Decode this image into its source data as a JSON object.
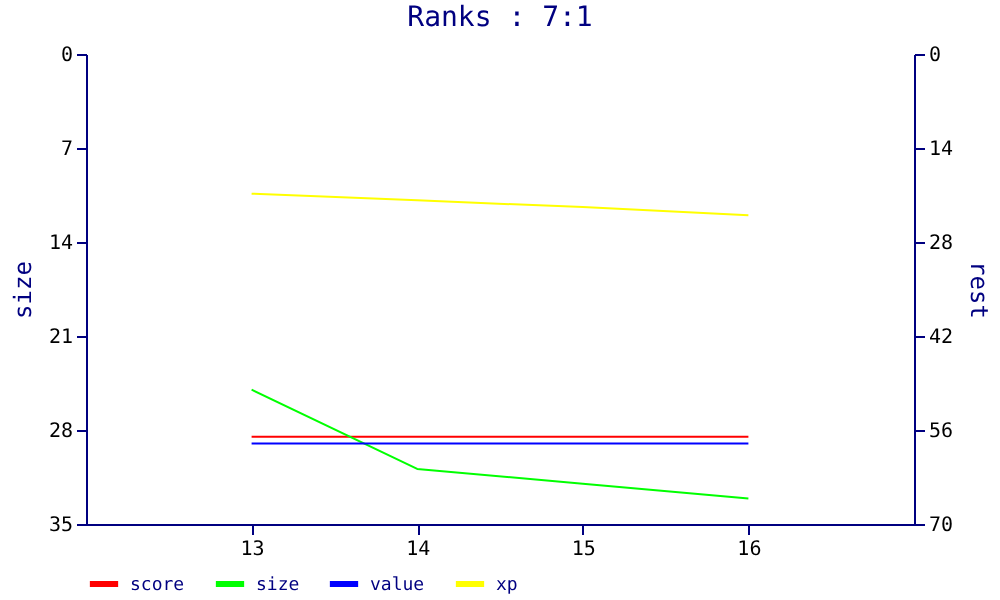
{
  "chart_data": {
    "type": "line",
    "title": "Ranks : 7:1",
    "ylabel": "size",
    "y2label": "rest",
    "x": [
      13,
      14,
      15,
      16
    ],
    "series": [
      {
        "name": "score",
        "color": "#ff0000",
        "values": [
          28.5,
          28.5,
          28.5,
          28.5
        ]
      },
      {
        "name": "size",
        "color": "#00ff00",
        "values": [
          25.0,
          30.9,
          32.0,
          33.1
        ]
      },
      {
        "name": "value",
        "color": "#0000ff",
        "axis": "y2",
        "values": [
          58,
          58,
          58,
          58
        ]
      },
      {
        "name": "xp",
        "color": "#ffff00",
        "values": [
          10.4,
          10.9,
          11.4,
          12.0
        ]
      }
    ],
    "xlim": [
      12,
      17
    ],
    "xticks": [
      13,
      14,
      15,
      16
    ],
    "ylim": [
      35,
      0
    ],
    "yticks": [
      0,
      7,
      14,
      21,
      28,
      35
    ],
    "y2lim": [
      70,
      0
    ],
    "y2ticks": [
      0,
      14,
      28,
      42,
      56,
      70
    ],
    "grid": false,
    "legend": "bottom left",
    "marker": "none",
    "line_style": "solid"
  }
}
